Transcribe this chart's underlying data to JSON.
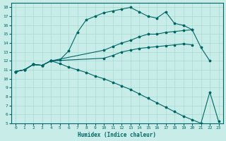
{
  "xlabel": "Humidex (Indice chaleur)",
  "bg_color": "#c8ece8",
  "grid_color": "#a8d8d0",
  "line_color": "#006666",
  "xlim": [
    -0.5,
    23.5
  ],
  "ylim": [
    5,
    18.5
  ],
  "xticks": [
    0,
    1,
    2,
    3,
    4,
    5,
    6,
    7,
    8,
    9,
    10,
    11,
    12,
    13,
    14,
    15,
    16,
    17,
    18,
    19,
    20,
    21,
    22,
    23
  ],
  "yticks": [
    5,
    6,
    7,
    8,
    9,
    10,
    11,
    12,
    13,
    14,
    15,
    16,
    17,
    18
  ],
  "lines": [
    {
      "x": [
        0,
        1,
        2,
        3,
        4,
        5,
        6,
        7,
        8,
        9,
        10,
        11,
        12,
        13,
        14,
        15,
        16,
        17,
        18,
        19,
        20,
        21,
        22
      ],
      "y": [
        10.8,
        11.0,
        11.6,
        11.5,
        12.0,
        12.1,
        13.1,
        15.2,
        16.6,
        17.0,
        17.4,
        17.6,
        17.8,
        18.0,
        17.5,
        17.0,
        16.8,
        17.5,
        16.2,
        16.0,
        15.5,
        13.5,
        12.0
      ]
    },
    {
      "x": [
        0,
        1,
        2,
        3,
        4,
        10,
        11,
        12,
        13,
        14,
        15,
        16,
        17,
        18,
        19,
        20
      ],
      "y": [
        10.8,
        11.0,
        11.6,
        11.5,
        12.0,
        13.2,
        13.6,
        14.0,
        14.3,
        14.7,
        15.0,
        15.0,
        15.2,
        15.3,
        15.4,
        15.5
      ]
    },
    {
      "x": [
        0,
        1,
        2,
        3,
        4,
        10,
        11,
        12,
        13,
        14,
        15,
        16,
        17,
        18,
        19,
        20
      ],
      "y": [
        10.8,
        11.0,
        11.6,
        11.5,
        12.0,
        12.3,
        12.6,
        13.0,
        13.2,
        13.4,
        13.5,
        13.6,
        13.7,
        13.8,
        13.9,
        13.8
      ]
    },
    {
      "x": [
        0,
        1,
        2,
        3,
        4,
        5,
        6,
        7,
        8,
        9,
        10,
        11,
        12,
        13,
        14,
        15,
        16,
        17,
        18,
        19,
        20,
        21,
        22,
        23
      ],
      "y": [
        10.8,
        11.0,
        11.6,
        11.5,
        12.0,
        11.7,
        11.3,
        11.0,
        10.7,
        10.3,
        10.0,
        9.6,
        9.2,
        8.8,
        8.3,
        7.8,
        7.3,
        6.8,
        6.3,
        5.8,
        5.4,
        5.0,
        8.5,
        5.2
      ]
    }
  ]
}
